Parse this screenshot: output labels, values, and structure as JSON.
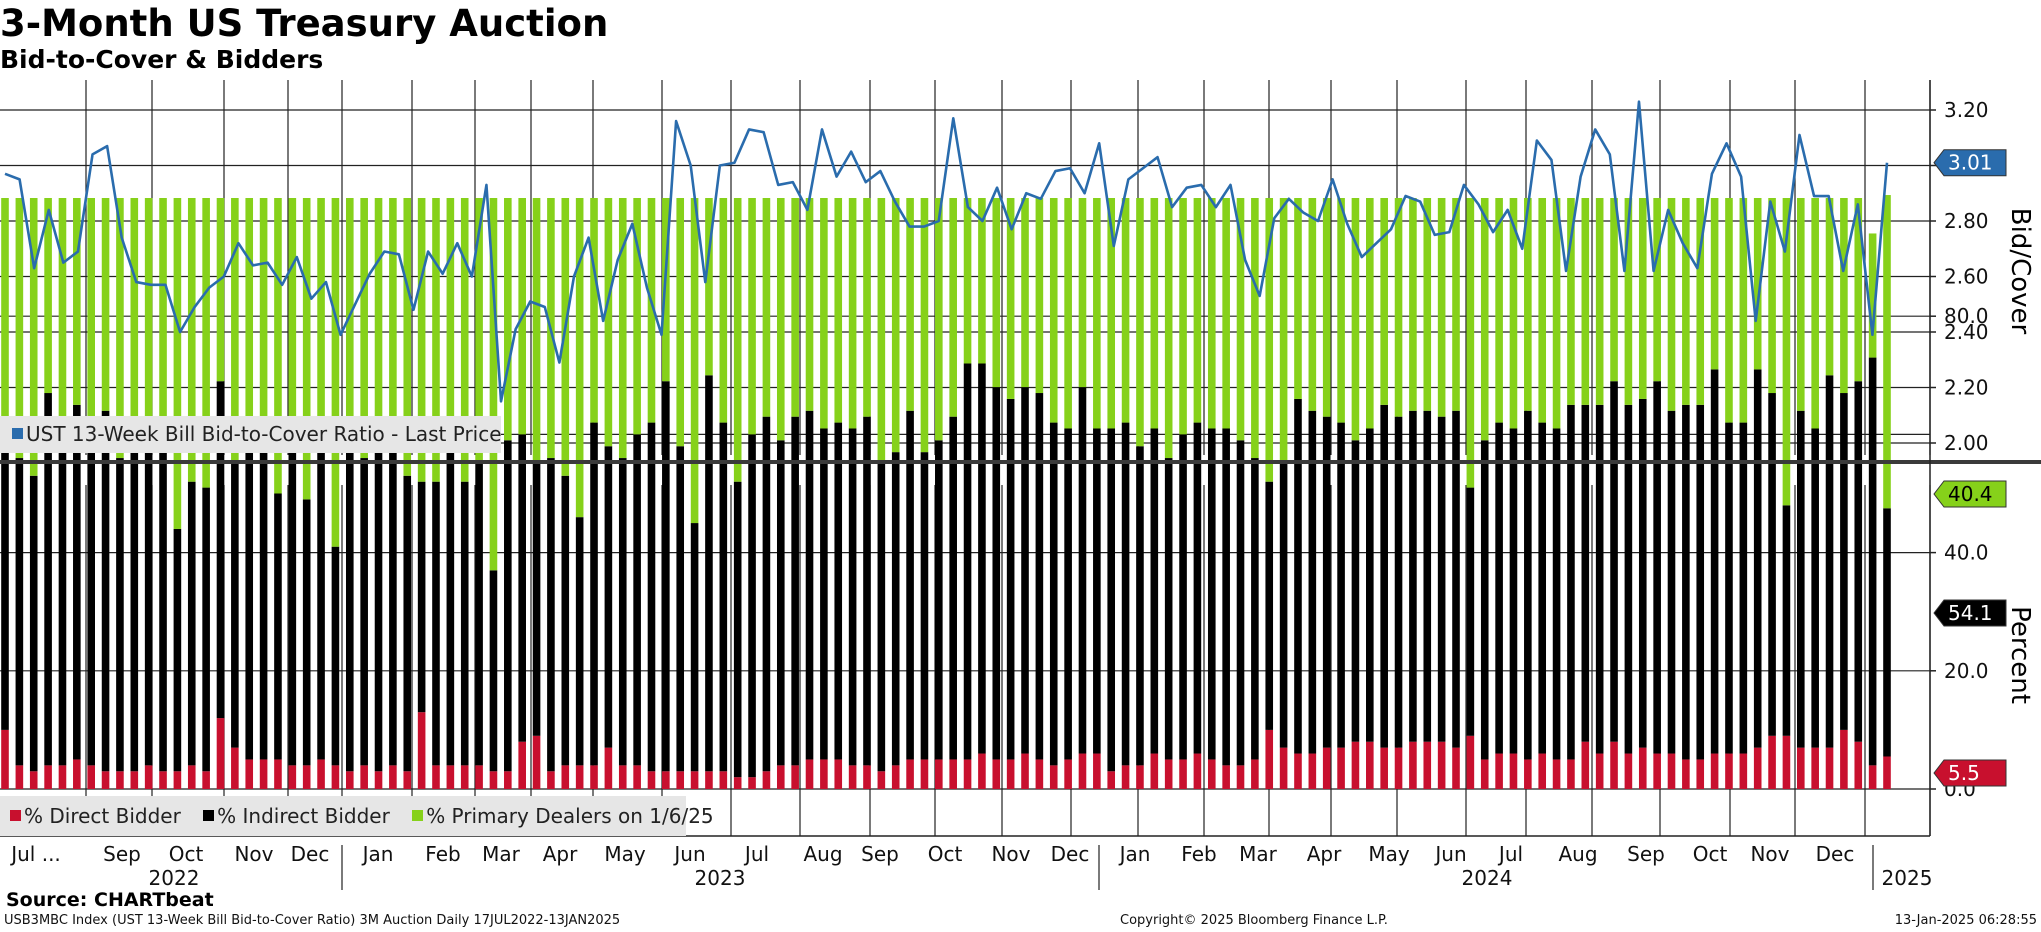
{
  "title": "3-Month US Treasury Auction",
  "subtitle": "Bid-to-Cover & Bidders",
  "source": "Source: CHARTbeat",
  "footer": {
    "left": "USB3MBC Index (UST 13-Week Bill Bid-to-Cover Ratio) 3M Auction  Daily 17JUL2022-13JAN2025",
    "center": "Copyright© 2025 Bloomberg Finance L.P.",
    "right": "13-Jan-2025 06:28:55"
  },
  "colors": {
    "line": "#2a6cad",
    "direct": "#c8102e",
    "indirect": "#000000",
    "primary": "#86d11a",
    "divider": "#3a3a3a"
  },
  "x_axis": {
    "months": [
      "Jul ...",
      "Sep",
      "Oct",
      "Nov",
      "Dec",
      "Jan",
      "Feb",
      "Mar",
      "Apr",
      "May",
      "Jun",
      "Jul",
      "Aug",
      "Sep",
      "Oct",
      "Nov",
      "Dec",
      "Jan",
      "Feb",
      "Mar",
      "Apr",
      "May",
      "Jun",
      "Jul",
      "Aug",
      "Sep",
      "Oct",
      "Nov",
      "Dec"
    ],
    "years": [
      "2022",
      "2023",
      "2024",
      "2025"
    ]
  },
  "chart_data": [
    {
      "type": "line",
      "ylabel": "Bid/Cover",
      "ylim": [
        1.95,
        3.3
      ],
      "yticks": [
        "2.00",
        "2.20",
        "2.40",
        "2.60",
        "2.80",
        "3.00",
        "3.20"
      ],
      "grid": true,
      "legend_position": "bottom-left",
      "last_value_label": "3.01",
      "series": [
        {
          "name": "UST 13-Week Bill Bid-to-Cover Ratio - Last Price",
          "values": [
            2.97,
            2.95,
            2.63,
            2.84,
            2.65,
            2.69,
            3.04,
            3.07,
            2.74,
            2.58,
            2.57,
            2.57,
            2.4,
            2.49,
            2.56,
            2.6,
            2.72,
            2.64,
            2.65,
            2.57,
            2.67,
            2.52,
            2.58,
            2.39,
            2.5,
            2.61,
            2.69,
            2.68,
            2.48,
            2.69,
            2.61,
            2.72,
            2.6,
            2.93,
            2.15,
            2.41,
            2.51,
            2.49,
            2.29,
            2.6,
            2.74,
            2.44,
            2.66,
            2.79,
            2.56,
            2.39,
            3.16,
            3.0,
            2.58,
            3.0,
            3.01,
            3.13,
            3.12,
            2.93,
            2.94,
            2.84,
            3.13,
            2.96,
            3.05,
            2.94,
            2.98,
            2.87,
            2.78,
            2.78,
            2.8,
            3.17,
            2.85,
            2.8,
            2.92,
            2.77,
            2.9,
            2.88,
            2.98,
            2.99,
            2.9,
            3.08,
            2.71,
            2.95,
            2.99,
            3.03,
            2.85,
            2.92,
            2.93,
            2.85,
            2.93,
            2.66,
            2.53,
            2.81,
            2.88,
            2.83,
            2.8,
            2.95,
            2.79,
            2.67,
            2.72,
            2.77,
            2.89,
            2.87,
            2.75,
            2.76,
            2.93,
            2.86,
            2.76,
            2.84,
            2.7,
            3.09,
            3.02,
            2.62,
            2.96,
            3.13,
            3.04,
            2.62,
            3.23,
            2.62,
            2.84,
            2.72,
            2.63,
            2.97,
            3.08,
            2.96,
            2.44,
            2.87,
            2.69,
            3.11,
            2.89,
            2.89,
            2.62,
            2.86,
            2.39,
            3.01
          ]
        }
      ]
    },
    {
      "type": "bar",
      "stacked": true,
      "ylabel": "Percent",
      "ylim": [
        -7,
        100
      ],
      "yticks": [
        "0.0",
        "20.0",
        "40.0",
        "80.0"
      ],
      "grid": true,
      "legend_position": "bottom-left",
      "last_value_labels": {
        "primary": "40.4",
        "indirect": "54.1",
        "direct": "5.5"
      },
      "series": [
        {
          "name": "% Direct Bidder",
          "values": [
            10.0,
            4.0,
            3.0,
            4.0,
            4.0,
            5.0,
            4.0,
            3.0,
            3.0,
            3.0,
            4.0,
            3.0,
            3.0,
            4.0,
            3.0,
            12.0,
            7.0,
            5.0,
            5.0,
            5.0,
            4.0,
            4.0,
            5.0,
            4.0,
            3.0,
            4.0,
            3.0,
            4.0,
            3.0,
            13.0,
            4.0,
            4.0,
            4.0,
            4.0,
            3.0,
            3.0,
            8.0,
            9.0,
            3.0,
            4.0,
            4.0,
            4.0,
            7.0,
            4.0,
            4.0,
            3.0,
            3.0,
            3.0,
            3.0,
            3.0,
            3.0,
            2.0,
            2.0,
            3.0,
            4.0,
            4.0,
            5.0,
            5.0,
            5.0,
            4.0,
            4.0,
            3.0,
            4.0,
            5.0,
            5.0,
            5.0,
            5.0,
            5.0,
            6.0,
            5.0,
            5.0,
            6.0,
            5.0,
            4.0,
            5.0,
            6.0,
            6.0,
            3.0,
            4.0,
            4.0,
            6.0,
            5.0,
            5.0,
            6.0,
            5.0,
            4.0,
            4.0,
            5.0,
            10.0,
            7.0,
            6.0,
            6.0,
            7.0,
            7.0,
            8.0,
            8.0,
            7.0,
            7.0,
            8.0,
            8.0,
            8.0,
            7.0,
            9.0,
            5.0,
            6.0,
            6.0,
            5.0,
            6.0,
            5.0,
            5.0,
            8.0,
            6.0,
            8.0,
            6.0,
            7.0,
            6.0,
            6.0,
            5.0,
            5.0,
            6.0,
            6.0,
            6.0,
            7.0,
            9.0,
            9.0,
            7.0,
            7.0,
            7.0,
            10.0,
            8.0,
            4.0,
            5.5
          ]
        },
        {
          "name": "% Indirect Bidder",
          "values": [
            48.0,
            52.0,
            50.0,
            63.0,
            53.0,
            60.0,
            56.0,
            61.0,
            53.0,
            55.0,
            54.0,
            55.0,
            41.0,
            48.0,
            48.0,
            57.0,
            48.0,
            54.0,
            53.0,
            45.0,
            56.0,
            45.0,
            56.0,
            37.0,
            54.0,
            52.0,
            55.0,
            56.0,
            50.0,
            39.0,
            48.0,
            54.0,
            48.0,
            51.0,
            34.0,
            56.0,
            52.0,
            46.0,
            53.0,
            49.0,
            42.0,
            58.0,
            51.0,
            52.0,
            56.0,
            59.0,
            66.0,
            55.0,
            42.0,
            67.0,
            59.0,
            50.0,
            58.0,
            60.0,
            55.0,
            59.0,
            59.0,
            56.0,
            57.0,
            57.0,
            59.0,
            52.0,
            53.0,
            59.0,
            52.0,
            54.0,
            58.0,
            67.0,
            66.0,
            63.0,
            61.0,
            62.0,
            62.0,
            58.0,
            56.0,
            62.0,
            55.0,
            58.0,
            58.0,
            54.0,
            55.0,
            51.0,
            55.0,
            56.0,
            56.0,
            57.0,
            55.0,
            51.0,
            42.0,
            48.0,
            60.0,
            58.0,
            56.0,
            55.0,
            51.0,
            53.0,
            58.0,
            56.0,
            56.0,
            56.0,
            55.0,
            57.0,
            42.0,
            54.0,
            56.0,
            55.0,
            59.0,
            56.0,
            56.0,
            60.0,
            57.0,
            59.0,
            61.0,
            59.0,
            59.0,
            63.0,
            58.0,
            60.0,
            60.0,
            65.0,
            56.0,
            56.0,
            64.0,
            58.0,
            39.0,
            57.0,
            54.0,
            63.0,
            57.0,
            61.0,
            69.0,
            42.0,
            54.1
          ]
        },
        {
          "name": "% Primary Dealers on 1/6/25",
          "values": [
            42.0,
            44.0,
            47.0,
            33.0,
            43.0,
            35.0,
            40.0,
            36.0,
            44.0,
            42.0,
            42.0,
            42.0,
            56.0,
            48.0,
            49.0,
            31.0,
            45.0,
            41.0,
            42.0,
            50.0,
            40.0,
            51.0,
            39.0,
            59.0,
            43.0,
            44.0,
            42.0,
            40.0,
            47.0,
            48.0,
            48.0,
            42.0,
            48.0,
            45.0,
            63.0,
            41.0,
            40.0,
            45.0,
            44.0,
            47.0,
            54.0,
            38.0,
            42.0,
            44.0,
            40.0,
            38.0,
            31.0,
            42.0,
            55.0,
            30.0,
            38.0,
            48.0,
            40.0,
            37.0,
            41.0,
            37.0,
            36.0,
            39.0,
            38.0,
            39.0,
            37.0,
            45.0,
            43.0,
            36.0,
            43.0,
            41.0,
            37.0,
            28.0,
            28.0,
            32.0,
            34.0,
            32.0,
            33.0,
            38.0,
            39.0,
            32.0,
            39.0,
            39.0,
            38.0,
            42.0,
            39.0,
            44.0,
            40.0,
            38.0,
            39.0,
            39.0,
            41.0,
            44.0,
            48.0,
            45.0,
            34.0,
            36.0,
            37.0,
            38.0,
            41.0,
            39.0,
            35.0,
            37.0,
            36.0,
            36.0,
            37.0,
            36.0,
            49.0,
            41.0,
            38.0,
            39.0,
            36.0,
            38.0,
            39.0,
            35.0,
            35.0,
            35.0,
            31.0,
            35.0,
            34.0,
            31.0,
            36.0,
            35.0,
            35.0,
            29.0,
            38.0,
            38.0,
            29.0,
            33.0,
            52.0,
            36.0,
            39.0,
            30.0,
            33.0,
            31.0,
            21.0,
            53.0,
            40.4
          ]
        }
      ]
    }
  ]
}
